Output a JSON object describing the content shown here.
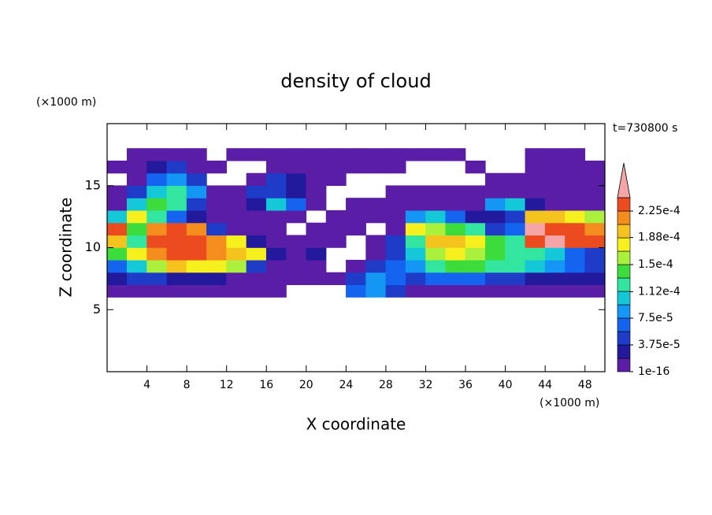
{
  "chart_data": {
    "type": "contour",
    "title": "density of cloud",
    "x_label": "X coordinate",
    "y_label": "Z coordinate",
    "x_unit": "(×1000 m)",
    "y_unit": "(×1000 m)",
    "time_label": "t=730800 s",
    "xlim": [
      0,
      50
    ],
    "xticks": [
      4,
      8,
      12,
      16,
      20,
      24,
      28,
      32,
      36,
      40,
      44,
      48
    ],
    "ylim": [
      0,
      20
    ],
    "yticks": [
      5,
      10,
      15
    ],
    "x": [
      1,
      3,
      5,
      7,
      9,
      11,
      13,
      15,
      17,
      19,
      21,
      23,
      25,
      27,
      29,
      31,
      33,
      35,
      37,
      39,
      41,
      43,
      45,
      47,
      49
    ],
    "y": [
      6.5,
      7.5,
      8.5,
      9.5,
      10.5,
      11.5,
      12.5,
      13.5,
      14.5,
      15.5,
      16.5,
      17.5
    ],
    "levels": [
      1e-16,
      1.875e-05,
      3.75e-05,
      5.625e-05,
      7.5e-05,
      9.375e-05,
      0.0001125,
      0.00013125,
      0.00015,
      0.00016875,
      0.0001875,
      0.00020625,
      0.000225,
      0.00024375
    ],
    "colors": [
      "#5a1ea6",
      "#23199c",
      "#1e3cc8",
      "#1464f0",
      "#1496f5",
      "#14c8d7",
      "#32e6a0",
      "#3cdc3c",
      "#aaf03c",
      "#f5f01e",
      "#f5c31e",
      "#f58c1e",
      "#eb4b1e",
      "#f5a5a5"
    ],
    "cbar_ticks": [
      {
        "value": 1e-16,
        "label": "1e-16"
      },
      {
        "value": 3.75e-05,
        "label": "3.75e-5"
      },
      {
        "value": 7.5e-05,
        "label": "7.5e-5"
      },
      {
        "value": 0.000112,
        "label": "1.12e-4"
      },
      {
        "value": 0.00015,
        "label": "1.5e-4"
      },
      {
        "value": 0.000188,
        "label": "1.88e-4"
      },
      {
        "value": 0.000225,
        "label": "2.25e-4"
      }
    ],
    "values": [
      [
        1e-05,
        1e-05,
        1e-05,
        1e-05,
        1e-05,
        1e-05,
        1e-05,
        1e-05,
        1e-05,
        null,
        null,
        null,
        7e-05,
        8.5e-05,
        5e-05,
        1e-05,
        1e-05,
        1e-05,
        1e-05,
        1e-05,
        1e-05,
        1e-05,
        1e-05,
        1e-05,
        1e-05
      ],
      [
        3e-05,
        5e-05,
        5e-05,
        3e-05,
        3e-05,
        3e-05,
        1e-05,
        1e-05,
        1e-05,
        1e-05,
        1e-05,
        1e-05,
        5e-05,
        8.5e-05,
        7e-05,
        5e-05,
        7e-05,
        7e-05,
        7e-05,
        5e-05,
        5e-05,
        3e-05,
        3e-05,
        3e-05,
        3e-05
      ],
      [
        7e-05,
        0.0001,
        0.00016,
        0.0002,
        0.00018,
        0.00018,
        0.00016,
        5e-05,
        1e-05,
        1e-05,
        1e-05,
        null,
        1e-05,
        5e-05,
        7e-05,
        8.5e-05,
        0.00012,
        0.00014,
        0.00014,
        0.00012,
        0.00012,
        0.0001,
        8.5e-05,
        7e-05,
        5e-05
      ],
      [
        0.00014,
        0.00018,
        0.000215,
        0.00023,
        0.00023,
        0.000215,
        0.0002,
        0.00018,
        3e-05,
        1e-05,
        3e-05,
        null,
        null,
        1e-05,
        5e-05,
        0.0001,
        0.00016,
        0.00018,
        0.00016,
        0.00014,
        0.00012,
        0.00012,
        0.0001,
        7e-05,
        5e-05
      ],
      [
        0.0002,
        0.00012,
        0.00023,
        0.00023,
        0.00023,
        0.000215,
        0.00018,
        3e-05,
        1e-05,
        1e-05,
        1e-05,
        1e-05,
        null,
        1e-05,
        5e-05,
        0.00012,
        0.0002,
        0.0002,
        0.00018,
        0.00014,
        0.00012,
        0.00023,
        0.00025,
        0.00023,
        0.00023
      ],
      [
        0.00023,
        0.00014,
        0.000215,
        0.00023,
        0.000215,
        5e-05,
        1e-05,
        1e-05,
        1e-05,
        null,
        1e-05,
        1e-05,
        1e-05,
        null,
        1e-05,
        0.00018,
        0.00016,
        0.00014,
        0.00012,
        5e-05,
        7e-05,
        0.00025,
        0.00023,
        0.00023,
        0.000215
      ],
      [
        0.0001,
        0.00018,
        0.00012,
        7e-05,
        3e-05,
        1e-05,
        1e-05,
        1e-05,
        1e-05,
        1e-05,
        null,
        1e-05,
        1e-05,
        1e-05,
        1e-05,
        8.5e-05,
        0.0001,
        7e-05,
        3e-05,
        3e-05,
        5e-05,
        0.0002,
        0.0002,
        0.00018,
        0.00016
      ],
      [
        1e-05,
        0.0001,
        0.00014,
        0.00012,
        5e-05,
        1e-05,
        1e-05,
        3e-05,
        0.0001,
        7e-05,
        1e-05,
        null,
        1e-05,
        1e-05,
        1e-05,
        1e-05,
        1e-05,
        1e-05,
        1e-05,
        8.5e-05,
        0.0001,
        3e-05,
        1e-05,
        1e-05,
        1e-05
      ],
      [
        1e-05,
        5e-05,
        0.0001,
        0.00012,
        8.5e-05,
        1e-05,
        1e-05,
        5e-05,
        5e-05,
        3e-05,
        1e-05,
        null,
        null,
        null,
        1e-05,
        1e-05,
        1e-05,
        1e-05,
        1e-05,
        1e-05,
        1e-05,
        1e-05,
        1e-05,
        1e-05,
        1e-05
      ],
      [
        null,
        1e-05,
        7e-05,
        8.5e-05,
        5e-05,
        null,
        null,
        1e-05,
        5e-05,
        3e-05,
        1e-05,
        1e-05,
        null,
        null,
        null,
        null,
        null,
        null,
        null,
        1e-05,
        1e-05,
        1e-05,
        1e-05,
        1e-05,
        1e-05
      ],
      [
        1e-05,
        1e-05,
        3e-05,
        5e-05,
        1e-05,
        1e-05,
        null,
        null,
        1e-05,
        1e-05,
        1e-05,
        1e-05,
        1e-05,
        1e-05,
        1e-05,
        null,
        null,
        null,
        1e-05,
        null,
        null,
        1e-05,
        1e-05,
        1e-05,
        1e-05
      ],
      [
        null,
        1e-05,
        1e-05,
        1e-05,
        1e-05,
        null,
        1e-05,
        1e-05,
        1e-05,
        1e-05,
        1e-05,
        1e-05,
        1e-05,
        1e-05,
        1e-05,
        1e-05,
        1e-05,
        1e-05,
        null,
        null,
        null,
        1e-05,
        1e-05,
        1e-05,
        null
      ]
    ]
  }
}
